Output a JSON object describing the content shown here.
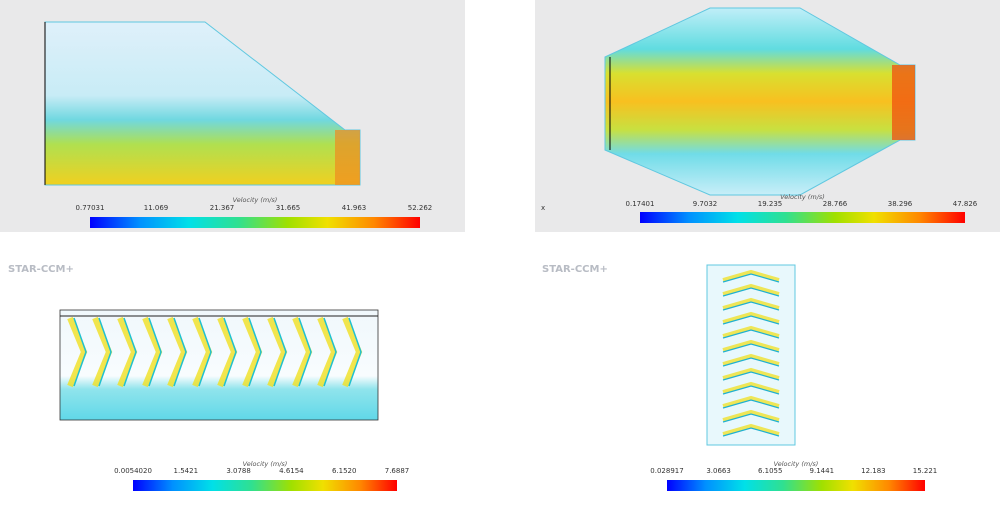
{
  "panels": [
    {
      "colorbar": {
        "title": "Velocity (m/s)",
        "ticks": [
          "0.77031",
          "11.069",
          "21.367",
          "31.665",
          "41.963",
          "52.262"
        ]
      }
    },
    {
      "colorbar": {
        "title": "Velocity (m/s)",
        "ticks": [
          "0.17401",
          "9.7032",
          "19.235",
          "28.766",
          "38.296",
          "47.826"
        ]
      },
      "axis": "x"
    },
    {
      "logo": "STAR-CCM+",
      "colorbar": {
        "title": "Velocity (m/s)",
        "ticks": [
          "0.0054020",
          "1.5421",
          "3.0788",
          "4.6154",
          "6.1520",
          "7.6887"
        ]
      }
    },
    {
      "logo": "STAR-CCM+",
      "colorbar": {
        "title": "Velocity (m/s)",
        "ticks": [
          "0.028917",
          "3.0663",
          "6.1055",
          "9.1441",
          "12.183",
          "15.221"
        ]
      }
    }
  ]
}
